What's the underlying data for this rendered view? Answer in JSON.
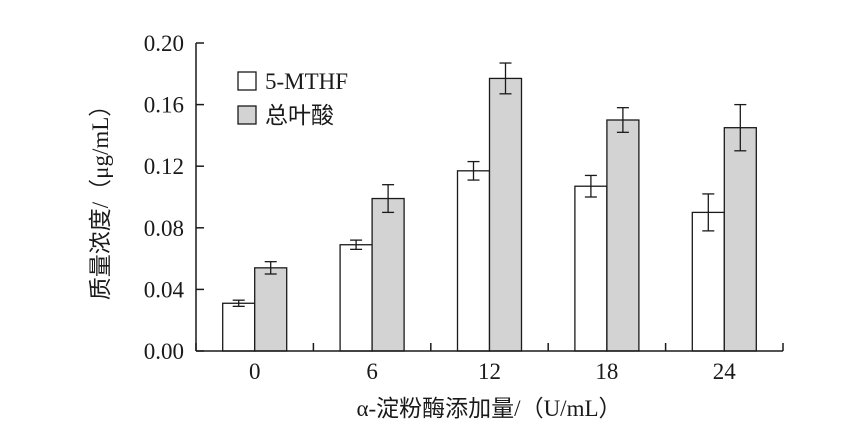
{
  "colors": {
    "axis": "#1a1a1a",
    "bar_stroke": "#1a1a1a",
    "series_1_fill": "#ffffff",
    "series_2_fill": "#d3d3d3"
  },
  "chart_data": {
    "type": "bar",
    "title": "",
    "xlabel": "α-淀粉酶添加量/（U/mL）",
    "ylabel": "质量浓度/（μg/mL）",
    "ylim": [
      0,
      0.2
    ],
    "yticks": [
      "0.00",
      "0.04",
      "0.08",
      "0.12",
      "0.16",
      "0.20"
    ],
    "categories": [
      "0",
      "6",
      "12",
      "18",
      "24"
    ],
    "legend_position": "top-left",
    "grid": false,
    "series": [
      {
        "name": "5-MTHF",
        "values": [
          0.031,
          0.069,
          0.117,
          0.107,
          0.09
        ],
        "errors": [
          0.002,
          0.003,
          0.006,
          0.007,
          0.012
        ]
      },
      {
        "name": "总叶酸",
        "values": [
          0.054,
          0.099,
          0.177,
          0.15,
          0.145
        ],
        "errors": [
          0.004,
          0.009,
          0.01,
          0.008,
          0.015
        ]
      }
    ]
  }
}
